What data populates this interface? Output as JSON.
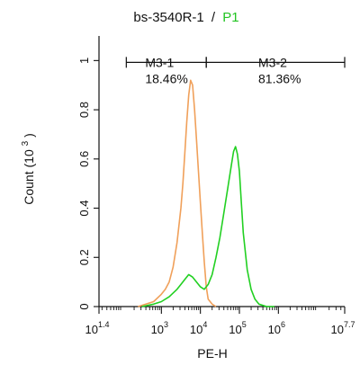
{
  "chart_data": {
    "type": "line",
    "title": "bs-3540R-1",
    "title_separator": "/",
    "title_gate": "P1",
    "xlabel": "PE-H",
    "ylabel": "Count (10^3)",
    "ylabel_prefix": "Count (10",
    "ylabel_exp": "3",
    "ylabel_suffix": ")",
    "x_scale": "log",
    "xlim": [
      1.4,
      7.7
    ],
    "ylim": [
      0,
      1.1
    ],
    "x_ticks": [
      {
        "base": "10",
        "exp": "1.4",
        "at": 1.4
      },
      {
        "base": "10",
        "exp": "3",
        "at": 3
      },
      {
        "base": "10",
        "exp": "4",
        "at": 4
      },
      {
        "base": "10",
        "exp": "5",
        "at": 5
      },
      {
        "base": "10",
        "exp": "6",
        "at": 6
      },
      {
        "base": "10",
        "exp": "7.7",
        "at": 7.7
      }
    ],
    "y_ticks": [
      "0",
      "0.2",
      "0.4",
      "0.6",
      "0.8",
      "1"
    ],
    "y_tick_values": [
      0,
      0.2,
      0.4,
      0.6,
      0.8,
      1.0
    ],
    "grid": false,
    "series": [
      {
        "color": "#f0a05a",
        "x": [
          2.4,
          2.6,
          2.8,
          3.0,
          3.1,
          3.2,
          3.3,
          3.4,
          3.5,
          3.55,
          3.6,
          3.65,
          3.7,
          3.75,
          3.8,
          3.85,
          3.9,
          3.95,
          4.0,
          4.05,
          4.1,
          4.15,
          4.2,
          4.3,
          4.4
        ],
        "y": [
          0.0,
          0.01,
          0.02,
          0.05,
          0.07,
          0.1,
          0.16,
          0.26,
          0.4,
          0.5,
          0.62,
          0.75,
          0.86,
          0.92,
          0.9,
          0.8,
          0.68,
          0.55,
          0.42,
          0.3,
          0.18,
          0.08,
          0.03,
          0.01,
          0.0
        ]
      },
      {
        "color": "#22d022",
        "x": [
          2.5,
          2.8,
          3.0,
          3.2,
          3.4,
          3.5,
          3.6,
          3.7,
          3.8,
          3.9,
          4.0,
          4.1,
          4.2,
          4.3,
          4.4,
          4.5,
          4.6,
          4.7,
          4.8,
          4.85,
          4.9,
          4.95,
          5.0,
          5.05,
          5.1,
          5.2,
          5.3,
          5.4,
          5.5,
          5.7,
          5.9
        ],
        "y": [
          0.0,
          0.01,
          0.02,
          0.04,
          0.07,
          0.09,
          0.11,
          0.13,
          0.12,
          0.1,
          0.08,
          0.07,
          0.09,
          0.13,
          0.2,
          0.28,
          0.38,
          0.48,
          0.58,
          0.63,
          0.65,
          0.62,
          0.55,
          0.42,
          0.3,
          0.15,
          0.07,
          0.03,
          0.01,
          0.0,
          0.0
        ]
      }
    ],
    "gates": [
      {
        "name": "M3-1",
        "percent": "18.46%",
        "x_start": 2.1,
        "x_end": 4.15,
        "y": 1.0
      },
      {
        "name": "M3-2",
        "percent": "81.36%",
        "x_start": 4.15,
        "x_end": 7.7,
        "y": 1.0
      }
    ]
  }
}
